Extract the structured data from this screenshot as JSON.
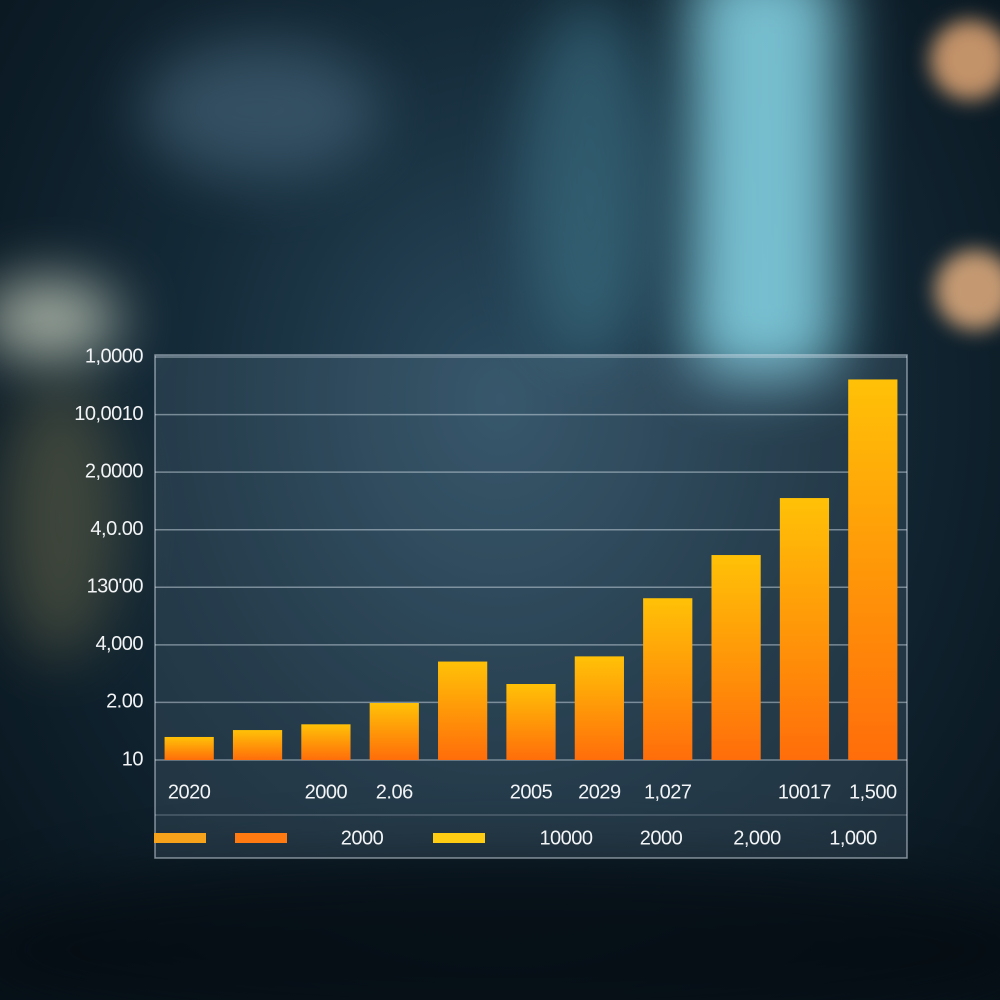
{
  "chart_data": {
    "type": "bar",
    "categories": [
      "2020",
      null,
      "2000",
      "2.06",
      null,
      "2005",
      "2029",
      "1,027",
      null,
      "10017",
      "1,500"
    ],
    "values": [
      0.4,
      0.52,
      0.62,
      0.99,
      1.71,
      1.32,
      1.8,
      2.81,
      3.56,
      4.55,
      6.61
    ],
    "gradient": [
      "#ffc107",
      "#ff6d0a"
    ],
    "ylim": [
      0,
      7
    ],
    "yticks": [
      {
        "value": 0,
        "label": "10"
      },
      {
        "value": 1,
        "label": "2.00"
      },
      {
        "value": 2,
        "label": "4,000"
      },
      {
        "value": 3,
        "label": "130'00"
      },
      {
        "value": 4,
        "label": "4,0.00"
      },
      {
        "value": 5,
        "label": "2,0000"
      },
      {
        "value": 6,
        "label": "10,0010"
      },
      {
        "value": 7,
        "label": "1,0000"
      }
    ],
    "grid": true,
    "legend": [
      {
        "color": "#f7a21b"
      },
      {
        "color": "#ff7b12"
      },
      {
        "label": "2000"
      },
      {
        "color": "#ffcc14"
      },
      {
        "label": "10000"
      },
      {
        "label": "2000"
      },
      {
        "label": "2,000"
      },
      {
        "label": "1,000"
      }
    ]
  }
}
